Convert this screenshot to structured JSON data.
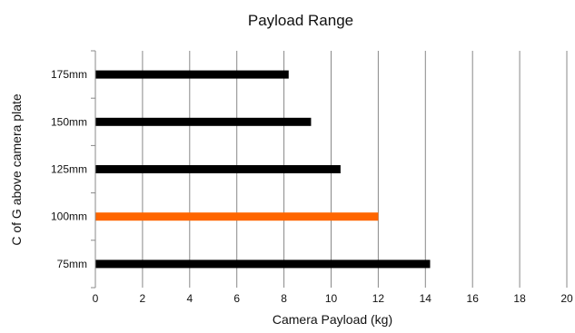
{
  "chart_data": {
    "type": "bar",
    "orientation": "horizontal",
    "title": "Payload Range",
    "xlabel": "Camera Payload (kg)",
    "ylabel": "C of G above camera plate",
    "categories": [
      "75mm",
      "100mm",
      "125mm",
      "150mm",
      "175mm"
    ],
    "values": [
      14.2,
      12.0,
      10.4,
      9.15,
      8.2
    ],
    "xlim": [
      0,
      20
    ],
    "xticks": [
      "0",
      "2",
      "4",
      "6",
      "8",
      "10",
      "12",
      "14",
      "16",
      "18",
      "20"
    ],
    "grid": "vertical",
    "legend": "none",
    "colors": {
      "bar": "#000000",
      "highlight": "#ff6600",
      "grid": "#888888",
      "axis": "#888888"
    },
    "highlight_category": "100mm"
  }
}
